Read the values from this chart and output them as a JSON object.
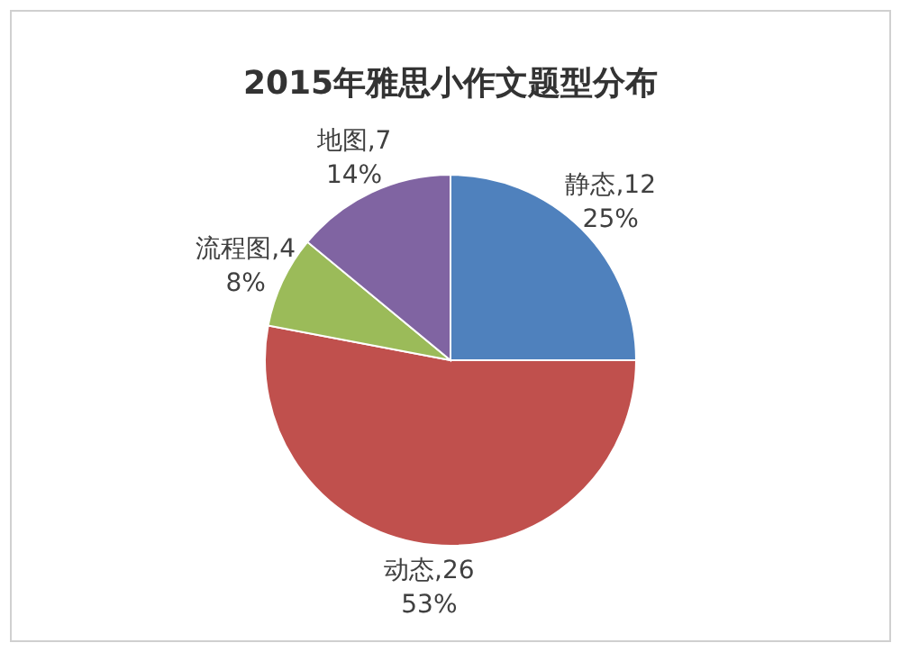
{
  "chart_data": {
    "type": "pie",
    "title": "2015年雅思小作文题型分布",
    "categories": [
      "静态,12",
      "动态,26",
      "流程图,4",
      "地图,7"
    ],
    "values": [
      25,
      53,
      8,
      14
    ],
    "colors": [
      "#4f81bd",
      "#c0504d",
      "#9bbb59",
      "#8064a2"
    ],
    "value_labels": [
      "25%",
      "53%",
      "8%",
      "14%"
    ]
  }
}
